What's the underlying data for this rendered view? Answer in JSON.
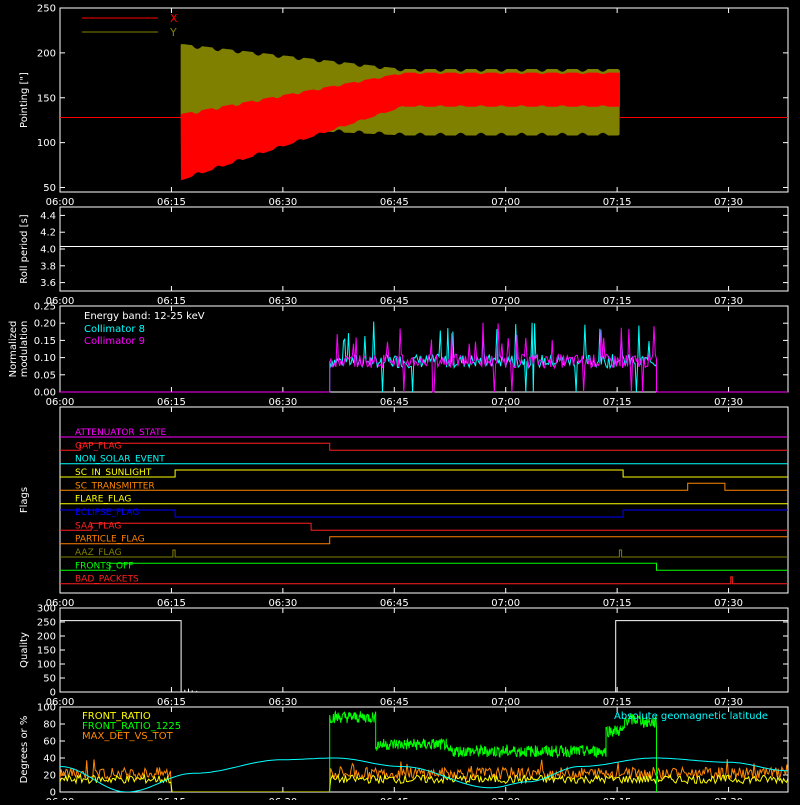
{
  "time_axis": {
    "range_minutes": [
      0,
      98
    ],
    "ticks": [
      {
        "m": 0,
        "label": "06:00"
      },
      {
        "m": 15,
        "label": "06:15"
      },
      {
        "m": 30,
        "label": "06:30"
      },
      {
        "m": 45,
        "label": "06:45"
      },
      {
        "m": 60,
        "label": "07:00"
      },
      {
        "m": 75,
        "label": "07:15"
      },
      {
        "m": 90,
        "label": "07:30"
      }
    ]
  },
  "chart_data": [
    {
      "id": "pointing",
      "type": "line",
      "ylabel": "Pointing [\"]",
      "ylim": [
        45,
        250
      ],
      "yticks": [
        50,
        100,
        150,
        200,
        250
      ],
      "legend": [
        {
          "label": "X",
          "color": "#ff0000"
        },
        {
          "label": "Y",
          "color": "#808000"
        }
      ],
      "series": [
        {
          "name": "X",
          "color": "#ff0000",
          "baseline": 128,
          "segment": [
            16.3,
            75.3
          ],
          "start_range": [
            58,
            132
          ],
          "end_range": [
            140,
            178
          ]
        },
        {
          "name": "Y",
          "color": "#808000",
          "baseline": 128,
          "segment": [
            16.3,
            75.3
          ],
          "start_range": [
            120,
            210
          ],
          "end_range": [
            108,
            182
          ]
        }
      ]
    },
    {
      "id": "roll",
      "type": "line",
      "ylabel": "Roll period [s]",
      "ylim": [
        3.5,
        4.5
      ],
      "yticks": [
        3.6,
        3.8,
        4.0,
        4.2,
        4.4
      ],
      "series": [
        {
          "name": "",
          "color": "#ffffff",
          "value": 4.03
        }
      ]
    },
    {
      "id": "modulation",
      "type": "line",
      "ylabel": "Normalized modulation",
      "ylim": [
        0,
        0.25
      ],
      "yticks": [
        0.0,
        0.05,
        0.1,
        0.15,
        0.2,
        0.25
      ],
      "annotation": "Energy band: 12-25 keV",
      "legend": [
        {
          "label": "Collimator 8",
          "color": "#00ffff"
        },
        {
          "label": "Collimator 9",
          "color": "#ff00ff"
        }
      ],
      "series": [
        {
          "name": "Collimator 8",
          "color": "#00ffff",
          "segment": [
            36.3,
            80.3
          ],
          "typical": 0.09
        },
        {
          "name": "Collimator 9",
          "color": "#ff00ff",
          "segment": [
            36.3,
            80.3
          ],
          "typical": 0.09
        }
      ]
    },
    {
      "id": "flags",
      "type": "line",
      "ylabel": "Flags",
      "flags": [
        {
          "name": "ATTENUATOR_STATE",
          "color": "#ff00ff",
          "changes": []
        },
        {
          "name": "GAP_FLAG",
          "color": "#ff2020",
          "changes": [
            [
              0,
              0
            ],
            [
              2.7,
              1
            ],
            [
              36.3,
              0
            ]
          ]
        },
        {
          "name": "NON_SOLAR_EVENT",
          "color": "#00ffff",
          "changes": []
        },
        {
          "name": "SC_IN_SUNLIGHT",
          "color": "#ffff00",
          "changes": [
            [
              0,
              0
            ],
            [
              15.5,
              1
            ],
            [
              75.8,
              0
            ]
          ]
        },
        {
          "name": "SC_TRANSMITTER",
          "color": "#ff8800",
          "changes": [
            [
              0,
              0
            ],
            [
              84.5,
              1
            ],
            [
              89.5,
              0
            ]
          ]
        },
        {
          "name": "FLARE_FLAG",
          "color": "#ffff00",
          "changes": []
        },
        {
          "name": "ECLIPSE_FLAG",
          "color": "#0000ff",
          "changes": [
            [
              0,
              1
            ],
            [
              15.5,
              0
            ],
            [
              75.8,
              1
            ]
          ]
        },
        {
          "name": "SAA_FLAG",
          "color": "#ff2020",
          "changes": [
            [
              0,
              0
            ],
            [
              4.2,
              1
            ],
            [
              33.8,
              0
            ]
          ]
        },
        {
          "name": "PARTICLE_FLAG",
          "color": "#ff8000",
          "changes": [
            [
              0,
              0
            ],
            [
              36.3,
              1
            ]
          ]
        },
        {
          "name": "AAZ_FLAG",
          "color": "#808000",
          "changes": [
            [
              0,
              0
            ],
            [
              15.2,
              1
            ],
            [
              15.5,
              0
            ],
            [
              75.3,
              1
            ],
            [
              75.6,
              0
            ]
          ]
        },
        {
          "name": "FRONTS_OFF",
          "color": "#00ff00",
          "changes": [
            [
              0,
              0
            ],
            [
              6.7,
              1
            ],
            [
              80.3,
              0
            ]
          ]
        },
        {
          "name": "BAD_PACKETS",
          "color": "#ff2020",
          "changes": [
            [
              0,
              0
            ],
            [
              90.3,
              1
            ],
            [
              90.5,
              0
            ]
          ]
        }
      ]
    },
    {
      "id": "quality",
      "type": "line",
      "ylabel": "Quality",
      "ylim": [
        0,
        300
      ],
      "yticks": [
        0,
        50,
        100,
        150,
        200,
        250,
        300
      ],
      "series": [
        {
          "name": "",
          "color": "#ffffff",
          "points": [
            [
              0,
              255
            ],
            [
              16.3,
              255
            ],
            [
              16.3,
              0
            ],
            [
              74.8,
              0
            ],
            [
              74.8,
              255
            ],
            [
              98,
              255
            ]
          ]
        }
      ]
    },
    {
      "id": "ratios",
      "type": "line",
      "ylabel": "Degrees or %",
      "ylim": [
        0,
        100
      ],
      "yticks": [
        0,
        20,
        40,
        60,
        80,
        100
      ],
      "legend": [
        {
          "label": "FRONT_RATIO",
          "color": "#ffff00"
        },
        {
          "label": "FRONT_RATIO_1225",
          "color": "#00ff00"
        },
        {
          "label": "MAX_DET_VS_TOT",
          "color": "#ff8800"
        }
      ],
      "annotation": "Absolute geomagnetic latitude",
      "annotation_color": "#00ffff",
      "series": [
        {
          "name": "Absolute geomagnetic latitude",
          "color": "#00ffff",
          "points": [
            [
              0,
              30
            ],
            [
              9,
              0
            ],
            [
              18,
              22
            ],
            [
              30,
              38
            ],
            [
              37,
              40
            ],
            [
              46,
              30
            ],
            [
              58,
              5
            ],
            [
              63,
              12
            ],
            [
              70,
              30
            ],
            [
              80,
              40
            ],
            [
              90,
              35
            ],
            [
              98,
              25
            ]
          ]
        },
        {
          "name": "FRONT_RATIO_1225",
          "color": "#00ff00",
          "segment": [
            36.3,
            80.3
          ],
          "levels": [
            [
              36.3,
              42.5,
              88
            ],
            [
              42.5,
              52,
              56
            ],
            [
              52,
              73.5,
              48
            ],
            [
              73.5,
              76,
              72
            ],
            [
              76,
              78.5,
              85
            ],
            [
              78.5,
              80.3,
              82
            ]
          ]
        },
        {
          "name": "MAX_DET_VS_TOT",
          "color": "#ff8800",
          "typical": 22
        },
        {
          "name": "FRONT_RATIO",
          "color": "#ffff00",
          "typical": 15
        }
      ]
    }
  ]
}
